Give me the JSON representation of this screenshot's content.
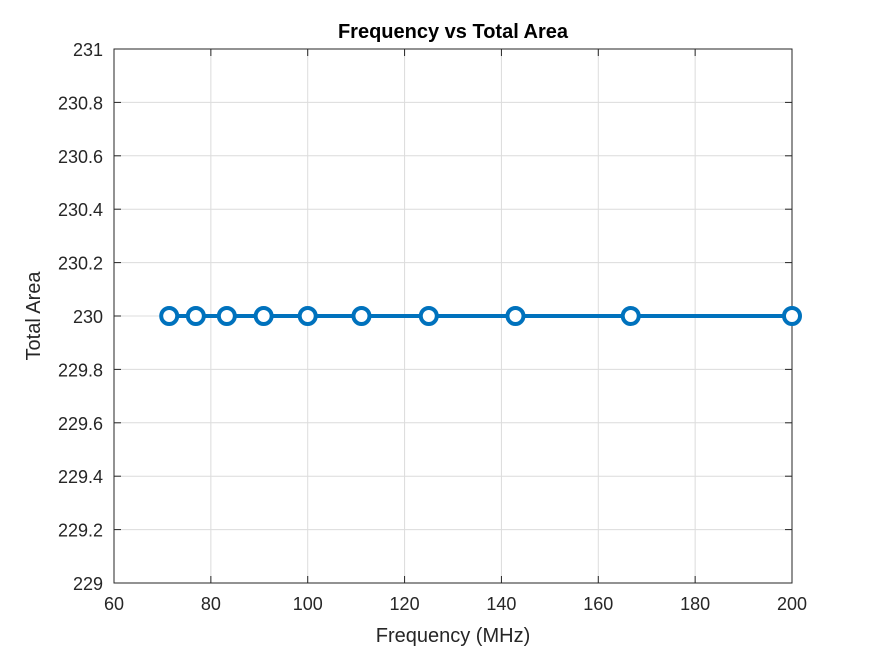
{
  "chart_data": {
    "type": "line",
    "title": "Frequency vs Total Area",
    "xlabel": "Frequency (MHz)",
    "ylabel": "Total Area",
    "xlim": [
      60,
      200
    ],
    "ylim": [
      229,
      231
    ],
    "xticks": [
      60,
      80,
      100,
      120,
      140,
      160,
      180,
      200
    ],
    "yticks": [
      229,
      229.2,
      229.4,
      229.6,
      229.8,
      230,
      230.2,
      230.4,
      230.6,
      230.8,
      231
    ],
    "xtick_labels": [
      "60",
      "80",
      "100",
      "120",
      "140",
      "160",
      "180",
      "200"
    ],
    "ytick_labels": [
      "229",
      "229.2",
      "229.4",
      "229.6",
      "229.8",
      "230",
      "230.2",
      "230.4",
      "230.6",
      "230.8",
      "231"
    ],
    "grid": true,
    "legend": "none",
    "series": [
      {
        "color": "#0072BD",
        "marker": "circle",
        "x": [
          71.4,
          76.9,
          83.3,
          90.9,
          100,
          111.1,
          125,
          142.9,
          166.7,
          200
        ],
        "y": [
          230,
          230,
          230,
          230,
          230,
          230,
          230,
          230,
          230,
          230
        ]
      }
    ]
  }
}
